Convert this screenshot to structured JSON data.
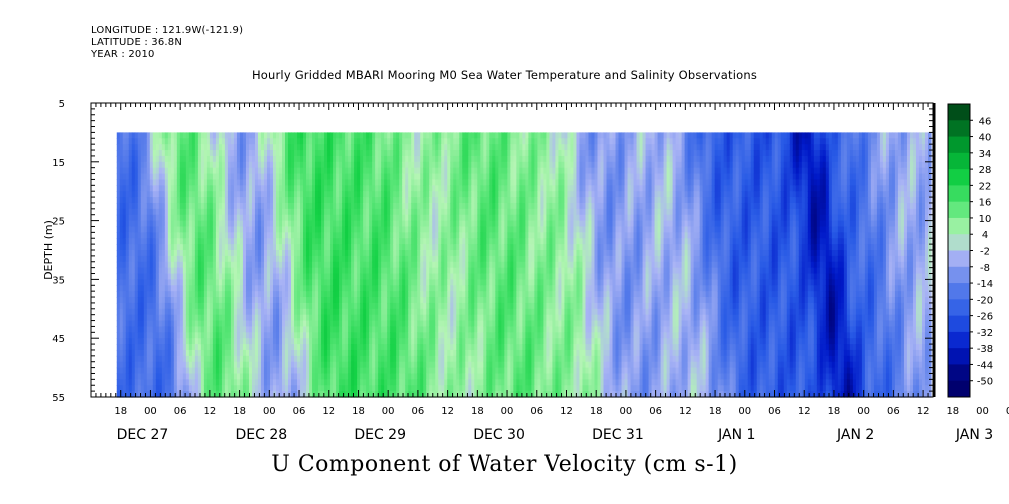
{
  "header": {
    "longitude": "LONGITUDE : 121.9W(-121.9)",
    "latitude": "LATITUDE : 36.8N",
    "year": "YEAR : 2010"
  },
  "title": "Hourly Gridded MBARI Mooring M0 Sea Water Temperature and Salinity Observations",
  "bottom_label": "U Component of Water Velocity (cm s-1)",
  "chart_data": {
    "type": "heatmap",
    "title": "Hourly Gridded MBARI Mooring M0 Sea Water Temperature and Salinity Observations",
    "xlabel": "",
    "ylabel": "DEPTH (m)",
    "ylim": [
      5,
      55
    ],
    "y_inverted": true,
    "depth_ticks": [
      "5",
      "15",
      "25",
      "35",
      "45",
      "55"
    ],
    "hour_ticks": [
      "18",
      "00",
      "06",
      "12",
      "18",
      "00",
      "06",
      "12",
      "18",
      "00",
      "06",
      "12",
      "18",
      "00",
      "06",
      "12",
      "18",
      "00",
      "06",
      "12",
      "18",
      "00",
      "06",
      "12",
      "18",
      "00",
      "06",
      "12",
      "18",
      "00",
      "06",
      "12"
    ],
    "date_labels": [
      "DEC 27",
      "DEC 28",
      "DEC 29",
      "DEC 30",
      "DEC 31",
      "JAN  1",
      "JAN  2",
      "JAN  3"
    ],
    "colorbar_labels": [
      "46",
      "40",
      "34",
      "28",
      "22",
      "16",
      "10",
      "4",
      "-2",
      "-8",
      "-14",
      "-20",
      "-26",
      "-32",
      "-38",
      "-44",
      "-50"
    ],
    "data_depth_range": [
      10,
      55
    ],
    "band_centers_time": [
      "DEC 27 18",
      "DEC 28 06",
      "DEC 28 18",
      "DEC 29 06",
      "DEC 29 18",
      "DEC 30 06",
      "DEC 30 18",
      "DEC 31 06",
      "DEC 31 18",
      "JAN 1 06",
      "JAN 1 18",
      "JAN 2 06",
      "JAN 2 18",
      "JAN 3 00",
      "JAN 3 06"
    ],
    "band_values": [
      -20,
      14,
      -8,
      18,
      16,
      6,
      14,
      8,
      -10,
      -4,
      -24,
      -26,
      -40,
      -22,
      -6
    ],
    "value_range": [
      -50,
      52
    ]
  }
}
